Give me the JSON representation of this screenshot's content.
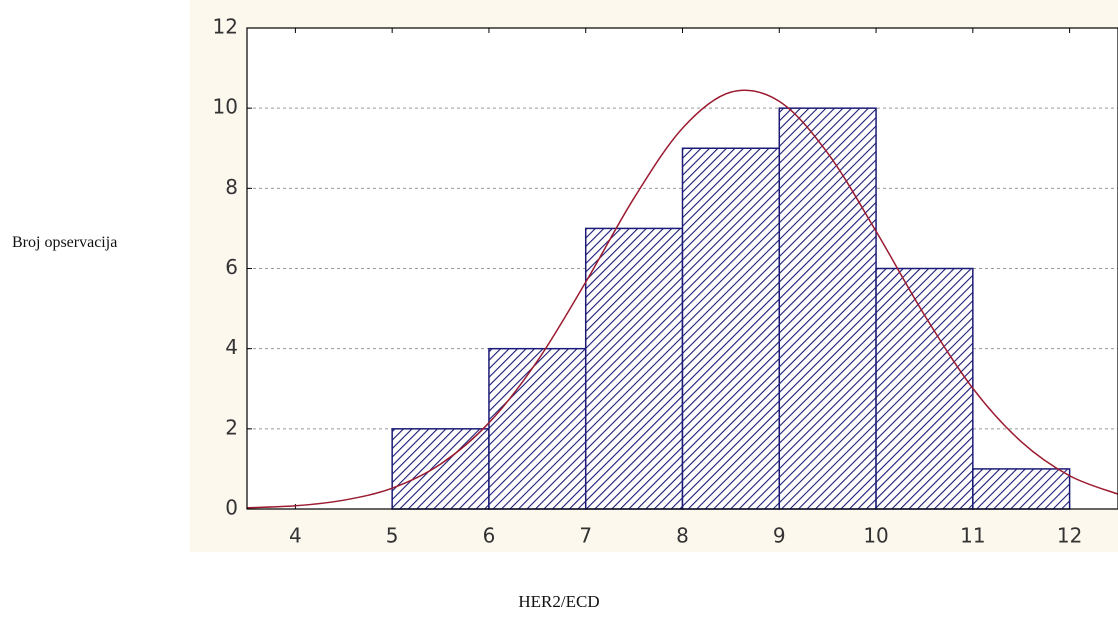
{
  "chart_data": {
    "type": "histogram",
    "y_label": "Broj opservacija",
    "x_label": "HER2/ECD",
    "bins": [
      5,
      6,
      7,
      8,
      9,
      10,
      11,
      12
    ],
    "values": [
      2,
      4,
      7,
      9,
      10,
      6,
      1
    ],
    "color": "#1c1c78",
    "curve": {
      "color": "#9b1b30",
      "x": [
        3.5,
        4,
        4.5,
        5,
        5.5,
        6,
        6.5,
        7,
        7.5,
        8,
        8.5,
        9,
        9.5,
        10,
        10.5,
        11,
        11.5,
        12,
        12.5
      ],
      "values": [
        0.03,
        0.08,
        0.22,
        0.52,
        1.12,
        2.15,
        3.69,
        5.66,
        7.76,
        9.5,
        10.4,
        10.17,
        8.88,
        6.93,
        4.84,
        3.01,
        1.68,
        0.83,
        0.37
      ]
    },
    "xlim": [
      3.5,
      12.5
    ],
    "xticks": [
      4,
      5,
      6,
      7,
      8,
      9,
      10,
      11,
      12
    ],
    "ylim": [
      0,
      12
    ],
    "yticks": [
      0,
      2,
      4,
      6,
      8,
      10,
      12
    ],
    "grid": true
  }
}
